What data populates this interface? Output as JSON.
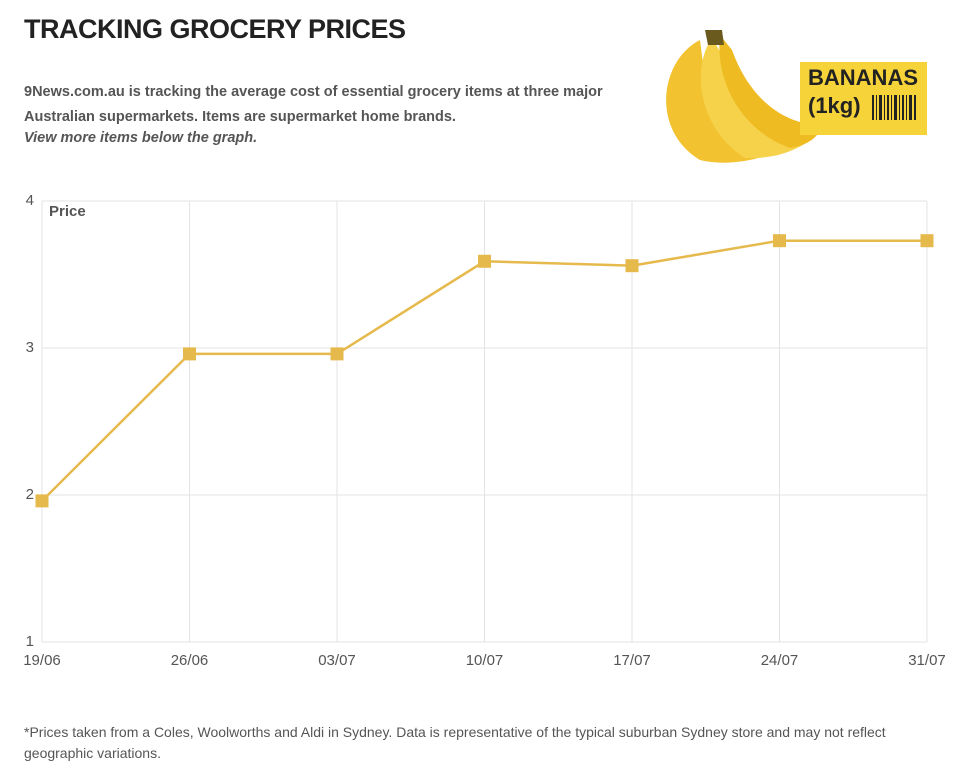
{
  "header": {
    "title": "TRACKING GROCERY PRICES",
    "subtitle": "9News.com.au is tracking the average cost of essential grocery items at three major Australian supermarkets. Items are supermarket home brands.",
    "more": "View more items below the graph."
  },
  "image_label": {
    "name": "BANANAS",
    "size": "(1kg)"
  },
  "chart_data": {
    "type": "line",
    "y_label": "Price",
    "categories": [
      "19/06",
      "26/06",
      "03/07",
      "10/07",
      "17/07",
      "24/07",
      "31/07"
    ],
    "series": [
      {
        "name": null,
        "color": "#e6b94c",
        "values": [
          1.96,
          2.96,
          2.96,
          3.59,
          3.56,
          3.73,
          3.73
        ]
      }
    ],
    "ylim": [
      1,
      4
    ],
    "yticks": [
      1,
      2,
      3,
      4
    ],
    "grid": true
  },
  "footnote": "*Prices taken from a Coles, Woolworths and Aldi in Sydney. Data is representative of the typical suburban Sydney store and may not reflect geographic variations."
}
